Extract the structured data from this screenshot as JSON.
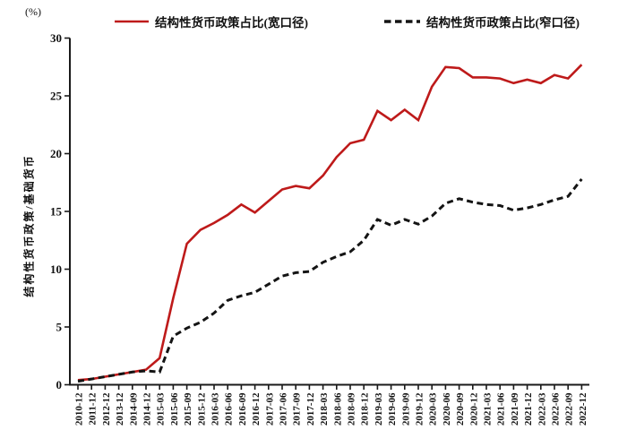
{
  "percent_label": "(%)",
  "y_axis_title": "结构性货币政策/基础货币",
  "legend": {
    "items": [
      {
        "label": "结构性货币政策占比(宽口径)",
        "color": "#be1a1a",
        "style": "solid"
      },
      {
        "label": "结构性货币政策占比(窄口径)",
        "color": "#141414",
        "style": "dashed"
      }
    ]
  },
  "chart_data": {
    "type": "line",
    "title": "",
    "xlabel": "",
    "ylabel": "结构性货币政策/基础货币",
    "y_unit": "(%)",
    "ylim": [
      0,
      30
    ],
    "y_ticks": [
      0,
      5,
      10,
      15,
      20,
      25,
      30
    ],
    "grid": false,
    "legend_position": "top",
    "x": [
      "2010-12",
      "2011-12",
      "2012-12",
      "2013-12",
      "2014-09",
      "2014-12",
      "2015-03",
      "2015-06",
      "2015-09",
      "2015-12",
      "2016-03",
      "2016-06",
      "2016-09",
      "2016-12",
      "2017-03",
      "2017-06",
      "2017-09",
      "2017-12",
      "2018-03",
      "2018-06",
      "2018-09",
      "2018-12",
      "2019-03",
      "2019-06",
      "2019-09",
      "2019-12",
      "2020-03",
      "2020-06",
      "2020-09",
      "2020-12",
      "2021-03",
      "2021-06",
      "2021-09",
      "2021-12",
      "2022-03",
      "2022-06",
      "2022-09",
      "2022-12"
    ],
    "series": [
      {
        "name": "结构性货币政策占比(宽口径)",
        "color": "#be1a1a",
        "dash": null,
        "line_width": 2.6,
        "values": [
          0.4,
          0.5,
          0.7,
          0.9,
          1.1,
          1.3,
          2.3,
          7.5,
          12.2,
          13.4,
          14.0,
          14.7,
          15.6,
          14.9,
          15.9,
          16.9,
          17.2,
          17.0,
          18.1,
          19.7,
          20.9,
          21.2,
          23.7,
          22.9,
          23.8,
          22.9,
          25.8,
          27.5,
          27.4,
          26.6,
          26.6,
          26.5,
          26.1,
          26.4,
          26.1,
          26.8,
          26.5,
          27.7
        ]
      },
      {
        "name": "结构性货币政策占比(窄口径)",
        "color": "#141414",
        "dash": [
          7,
          4.5
        ],
        "line_width": 3,
        "values": [
          0.3,
          0.5,
          0.7,
          0.9,
          1.1,
          1.2,
          1.1,
          4.2,
          4.9,
          5.4,
          6.2,
          7.3,
          7.7,
          8.0,
          8.7,
          9.4,
          9.7,
          9.8,
          10.6,
          11.1,
          11.5,
          12.5,
          14.3,
          13.8,
          14.3,
          13.9,
          14.6,
          15.7,
          16.1,
          15.8,
          15.6,
          15.5,
          15.1,
          15.3,
          15.6,
          16.0,
          16.3,
          17.8
        ]
      }
    ]
  }
}
